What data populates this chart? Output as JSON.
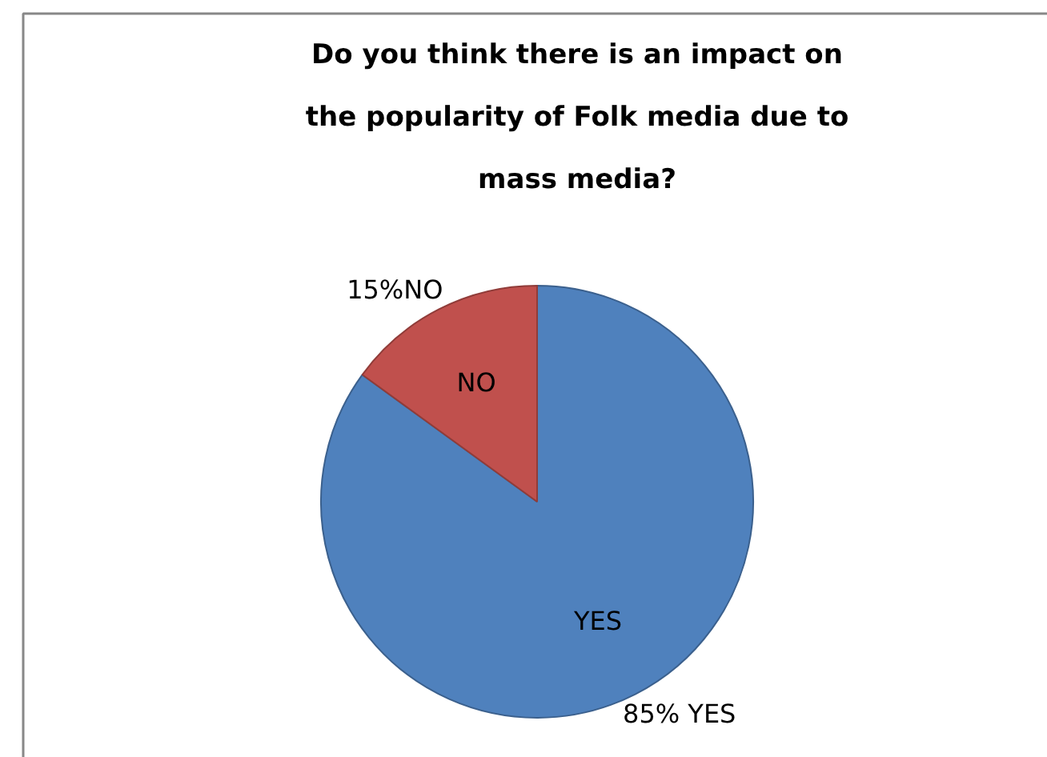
{
  "chart_data": {
    "type": "pie",
    "title": "Do you think there is an impact on the popularity of Folk media due to mass media?",
    "categories": [
      "YES",
      "NO"
    ],
    "values": [
      85,
      15
    ],
    "colors": [
      "#4f81bd",
      "#c0504d"
    ],
    "value_labels": [
      "85% YES",
      "15%NO"
    ]
  }
}
